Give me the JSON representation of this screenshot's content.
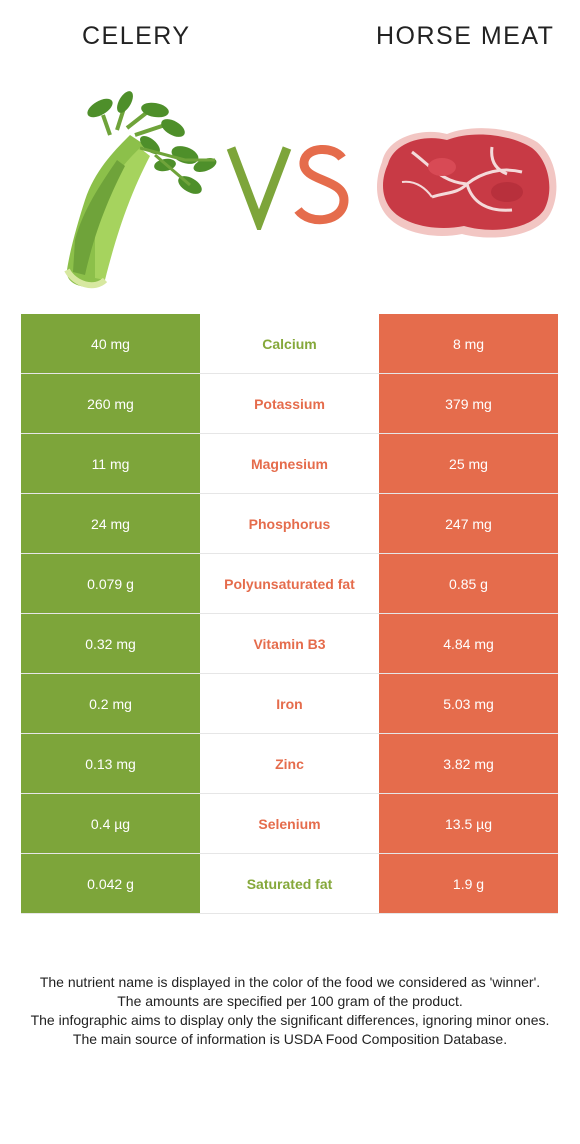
{
  "header": {
    "left_food": "CELERY",
    "right_food": "HORSE MEAT",
    "vs_text": "VS"
  },
  "colors": {
    "celery": "#7da53a",
    "horse_meat": "#e56c4c"
  },
  "rows": [
    {
      "left": "40 mg",
      "nutrient": "Calcium",
      "right": "8 mg",
      "winner": "celery"
    },
    {
      "left": "260 mg",
      "nutrient": "Potassium",
      "right": "379 mg",
      "winner": "horse_meat"
    },
    {
      "left": "11 mg",
      "nutrient": "Magnesium",
      "right": "25 mg",
      "winner": "horse_meat"
    },
    {
      "left": "24 mg",
      "nutrient": "Phosphorus",
      "right": "247 mg",
      "winner": "horse_meat"
    },
    {
      "left": "0.079 g",
      "nutrient": "Polyunsaturated fat",
      "right": "0.85 g",
      "winner": "horse_meat"
    },
    {
      "left": "0.32 mg",
      "nutrient": "Vitamin B3",
      "right": "4.84 mg",
      "winner": "horse_meat"
    },
    {
      "left": "0.2 mg",
      "nutrient": "Iron",
      "right": "5.03 mg",
      "winner": "horse_meat"
    },
    {
      "left": "0.13 mg",
      "nutrient": "Zinc",
      "right": "3.82 mg",
      "winner": "horse_meat"
    },
    {
      "left": "0.4 µg",
      "nutrient": "Selenium",
      "right": "13.5 µg",
      "winner": "horse_meat"
    },
    {
      "left": "0.042 g",
      "nutrient": "Saturated fat",
      "right": "1.9 g",
      "winner": "celery"
    }
  ],
  "footer": {
    "line1": "The nutrient name is displayed in the color of the food we considered as 'winner'.",
    "line2": "The amounts are specified per 100 gram of the product.",
    "line3": "The infographic aims to display only the significant differences, ignoring minor ones.",
    "line4": "The main source of information is USDA Food Composition Database."
  }
}
